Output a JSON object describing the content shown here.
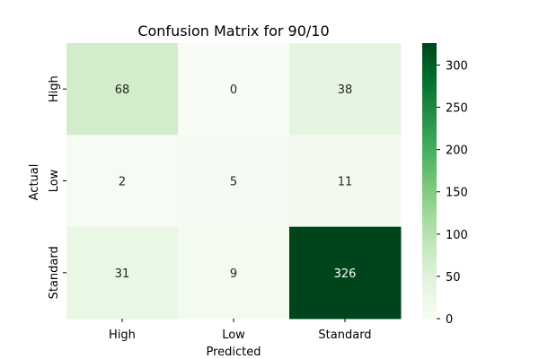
{
  "chart_data": {
    "type": "heatmap",
    "title": "Confusion Matrix for 90/10",
    "xlabel": "Predicted",
    "ylabel": "Actual",
    "x_categories": [
      "High",
      "Low",
      "Standard"
    ],
    "y_categories": [
      "High",
      "Low",
      "Standard"
    ],
    "values": [
      [
        68,
        0,
        38
      ],
      [
        2,
        5,
        11
      ],
      [
        31,
        9,
        326
      ]
    ],
    "colorbar": {
      "min": 0,
      "max": 326,
      "ticks": [
        0,
        50,
        100,
        150,
        200,
        250,
        300
      ],
      "colormap": "Greens",
      "low_color": "#f7fcf5",
      "high_color": "#00441b"
    }
  }
}
